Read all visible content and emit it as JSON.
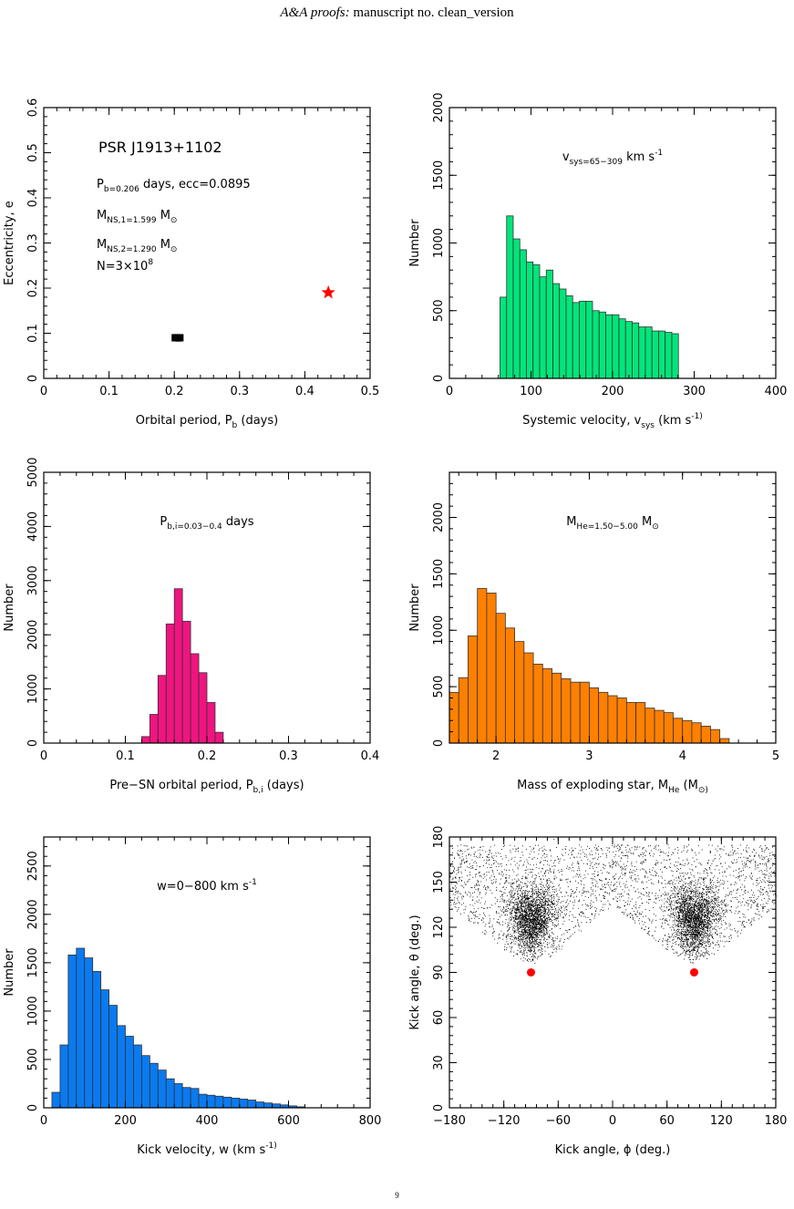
{
  "header": {
    "journal": "A&A proofs:",
    "manuscript": "manuscript no. clean_version"
  },
  "page_number": "9",
  "chart_data": [
    {
      "id": "p1",
      "type": "scatter",
      "xlabel": "Orbital period, P_b  (days)",
      "ylabel": "Eccentricity, e",
      "xlim": [
        0,
        0.5
      ],
      "ylim": [
        0,
        0.6
      ],
      "xticks": [
        0,
        0.1,
        0.2,
        0.3,
        0.4,
        0.5
      ],
      "xtick_labels": [
        "0",
        "0.1",
        "0.2",
        "0.3",
        "0.4",
        "0.5"
      ],
      "yticks": [
        0,
        0.1,
        0.2,
        0.3,
        0.4,
        0.5,
        0.6
      ],
      "ytick_labels": [
        "0",
        "0.1",
        "0.2",
        "0.3",
        "0.4",
        "0.5",
        "0.6"
      ],
      "annotations": {
        "title": "PSR J1913+1102",
        "line1": "P_b=0.206 days,  ecc=0.0895",
        "line2": "M_NS,1=1.599 M_⊙",
        "line3": "M_NS,2=1.290 M_⊙",
        "line4": "N=3×10^8"
      },
      "points": [
        {
          "x": 0.2,
          "y": 0.09,
          "color": "#000000"
        },
        {
          "x": 0.202,
          "y": 0.09,
          "color": "#000000"
        },
        {
          "x": 0.204,
          "y": 0.09,
          "color": "#000000"
        },
        {
          "x": 0.206,
          "y": 0.0895,
          "color": "#000000"
        },
        {
          "x": 0.208,
          "y": 0.09,
          "color": "#000000"
        },
        {
          "x": 0.21,
          "y": 0.09,
          "color": "#000000"
        }
      ],
      "star": {
        "x": 0.436,
        "y": 0.19,
        "color": "#ff0000"
      }
    },
    {
      "id": "p2",
      "type": "bar",
      "xlabel": "Systemic velocity, v_sys  (km s^-1)",
      "ylabel": "Number",
      "xlim": [
        0,
        400
      ],
      "ylim": [
        0,
        2000
      ],
      "xticks": [
        0,
        100,
        200,
        300,
        400
      ],
      "xtick_labels": [
        "0",
        "100",
        "200",
        "300",
        "400"
      ],
      "yticks": [
        0,
        500,
        1000,
        1500,
        2000
      ],
      "ytick_labels": [
        "0",
        "500",
        "1000",
        "1500",
        "2000"
      ],
      "annotation": "v_sys=65−309 km s^-1",
      "color": "#00e67a",
      "bin_start": 62,
      "bin_width": 8.1,
      "values": [
        600,
        1200,
        1030,
        950,
        860,
        840,
        750,
        800,
        700,
        660,
        610,
        560,
        570,
        570,
        500,
        490,
        470,
        470,
        440,
        420,
        410,
        380,
        380,
        350,
        350,
        340,
        330
      ]
    },
    {
      "id": "p3",
      "type": "bar",
      "xlabel": "Pre−SN orbital period, P_b,i  (days)",
      "ylabel": "Number",
      "xlim": [
        0,
        0.4
      ],
      "ylim": [
        0,
        5000
      ],
      "xticks": [
        0,
        0.1,
        0.2,
        0.3,
        0.4
      ],
      "xtick_labels": [
        "0",
        "0.1",
        "0.2",
        "0.3",
        "0.4"
      ],
      "yticks": [
        0,
        1000,
        2000,
        3000,
        4000,
        5000
      ],
      "ytick_labels": [
        "0",
        "1000",
        "2000",
        "3000",
        "4000",
        "5000"
      ],
      "annotation": "P_b,i=0.03−0.4 days",
      "color": "#f01480",
      "bin_start": 0.12,
      "bin_width": 0.01,
      "values": [
        120,
        530,
        1250,
        2200,
        2850,
        2250,
        1650,
        1300,
        750,
        200
      ]
    },
    {
      "id": "p4",
      "type": "bar",
      "xlabel": "Mass of exploding star, M_He  (M_⊙)",
      "ylabel": "Number",
      "xlim": [
        1.5,
        5
      ],
      "ylim": [
        0,
        2400
      ],
      "xticks": [
        2,
        3,
        4,
        5
      ],
      "xtick_labels": [
        "2",
        "3",
        "4",
        "5"
      ],
      "yticks": [
        0,
        500,
        1000,
        1500,
        2000
      ],
      "ytick_labels": [
        "0",
        "500",
        "1000",
        "1500",
        "2000"
      ],
      "annotation": "M_He=1.50−5.00 M_⊙",
      "color": "#ff8000",
      "bin_start": 1.5,
      "bin_width": 0.1,
      "values": [
        450,
        580,
        950,
        1370,
        1330,
        1150,
        1020,
        900,
        800,
        700,
        660,
        620,
        570,
        540,
        540,
        490,
        450,
        420,
        400,
        360,
        360,
        310,
        290,
        270,
        220,
        200,
        180,
        150,
        120,
        40
      ]
    },
    {
      "id": "p5",
      "type": "bar",
      "xlabel": "Kick velocity, w  (km s^-1)",
      "ylabel": "Number",
      "xlim": [
        0,
        800
      ],
      "ylim": [
        0,
        2800
      ],
      "xticks": [
        0,
        200,
        400,
        600,
        800
      ],
      "xtick_labels": [
        "0",
        "200",
        "400",
        "600",
        "800"
      ],
      "yticks": [
        0,
        500,
        1000,
        1500,
        2000,
        2500
      ],
      "ytick_labels": [
        "0",
        "500",
        "1000",
        "1500",
        "2000",
        "2500"
      ],
      "annotation": "w=0−800 km s^-1",
      "color": "#0a7af0",
      "bin_start": 20,
      "bin_width": 20,
      "values": [
        160,
        650,
        1580,
        1650,
        1550,
        1410,
        1220,
        1060,
        850,
        740,
        650,
        540,
        460,
        390,
        300,
        250,
        210,
        200,
        140,
        130,
        120,
        110,
        100,
        90,
        80,
        60,
        50,
        40,
        30,
        20,
        10
      ]
    },
    {
      "id": "p6",
      "type": "scatter",
      "xlabel": "Kick angle, ϕ  (deg.)",
      "ylabel": "Kick angle, θ  (deg.)",
      "xlim": [
        -180,
        180
      ],
      "ylim": [
        0,
        180
      ],
      "xticks": [
        -180,
        -120,
        -60,
        0,
        60,
        120,
        180
      ],
      "xtick_labels": [
        "−180",
        "−120",
        "−60",
        "0",
        "60",
        "120",
        "180"
      ],
      "yticks": [
        0,
        30,
        60,
        90,
        120,
        150,
        180
      ],
      "ytick_labels": [
        "0",
        "30",
        "60",
        "90",
        "120",
        "150",
        "180"
      ],
      "clusters": [
        {
          "phi": -90,
          "theta_min": 95,
          "theta_peak": 123
        },
        {
          "phi": 90,
          "theta_min": 95,
          "theta_peak": 123
        }
      ],
      "background_theta_range": [
        100,
        175
      ],
      "markers": [
        {
          "x": -90,
          "y": 90,
          "color": "#ff0000"
        },
        {
          "x": 90,
          "y": 90,
          "color": "#ff0000"
        }
      ]
    }
  ]
}
